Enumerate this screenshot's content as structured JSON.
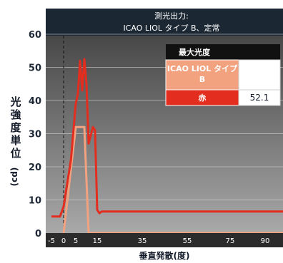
{
  "chart_data": {
    "type": "line",
    "title_line1": "測光出力:",
    "title_line2": "ICAO LIOL タイプ B、定常",
    "xlabel": "垂直発散(度)",
    "ylabel": "光強度単位(cd)",
    "y_ticks": [
      "0",
      "10",
      "20",
      "30",
      "40",
      "50",
      "60"
    ],
    "x_ticks": [
      "-5",
      "0",
      "5",
      "15",
      "35",
      "55",
      "75",
      "90"
    ],
    "ylim": [
      0,
      60
    ],
    "legend": {
      "header": "最大光度",
      "rows": [
        {
          "name": "ICAO LIOL タイプ B",
          "value": ""
        },
        {
          "name": "赤",
          "value": "52.1"
        }
      ]
    },
    "colors": {
      "plot_bg_top": "#3a3a3a",
      "plot_bg_bottom": "#a9a9a9",
      "title_bg": "#1b2733",
      "red_series": "#e32d1f",
      "limit_series": "#f2a27f",
      "legend_dark": "#111111"
    },
    "series": [
      {
        "name": "赤",
        "color": "#e32d1f",
        "points": [
          {
            "x": -5,
            "y": 5
          },
          {
            "x": -1.5,
            "y": 5
          },
          {
            "x": 0,
            "y": 8
          },
          {
            "x": 3,
            "y": 22
          },
          {
            "x": 5,
            "y": 39
          },
          {
            "x": 6,
            "y": 42
          },
          {
            "x": 7,
            "y": 52
          },
          {
            "x": 8,
            "y": 43
          },
          {
            "x": 9,
            "y": 52.5
          },
          {
            "x": 10,
            "y": 45
          },
          {
            "x": 11,
            "y": 27
          },
          {
            "x": 13,
            "y": 32
          },
          {
            "x": 14,
            "y": 31
          },
          {
            "x": 15,
            "y": 7
          },
          {
            "x": 16,
            "y": 6
          },
          {
            "x": 17,
            "y": 6.5
          },
          {
            "x": 95,
            "y": 6.5
          }
        ]
      },
      {
        "name": "ICAO LIOL タイプ B",
        "color": "#f2a27f",
        "points": [
          {
            "x": 0,
            "y": 0
          },
          {
            "x": 5,
            "y": 32
          },
          {
            "x": 9,
            "y": 32
          },
          {
            "x": 11,
            "y": 0
          },
          {
            "x": 95,
            "y": 0
          }
        ]
      }
    ]
  }
}
